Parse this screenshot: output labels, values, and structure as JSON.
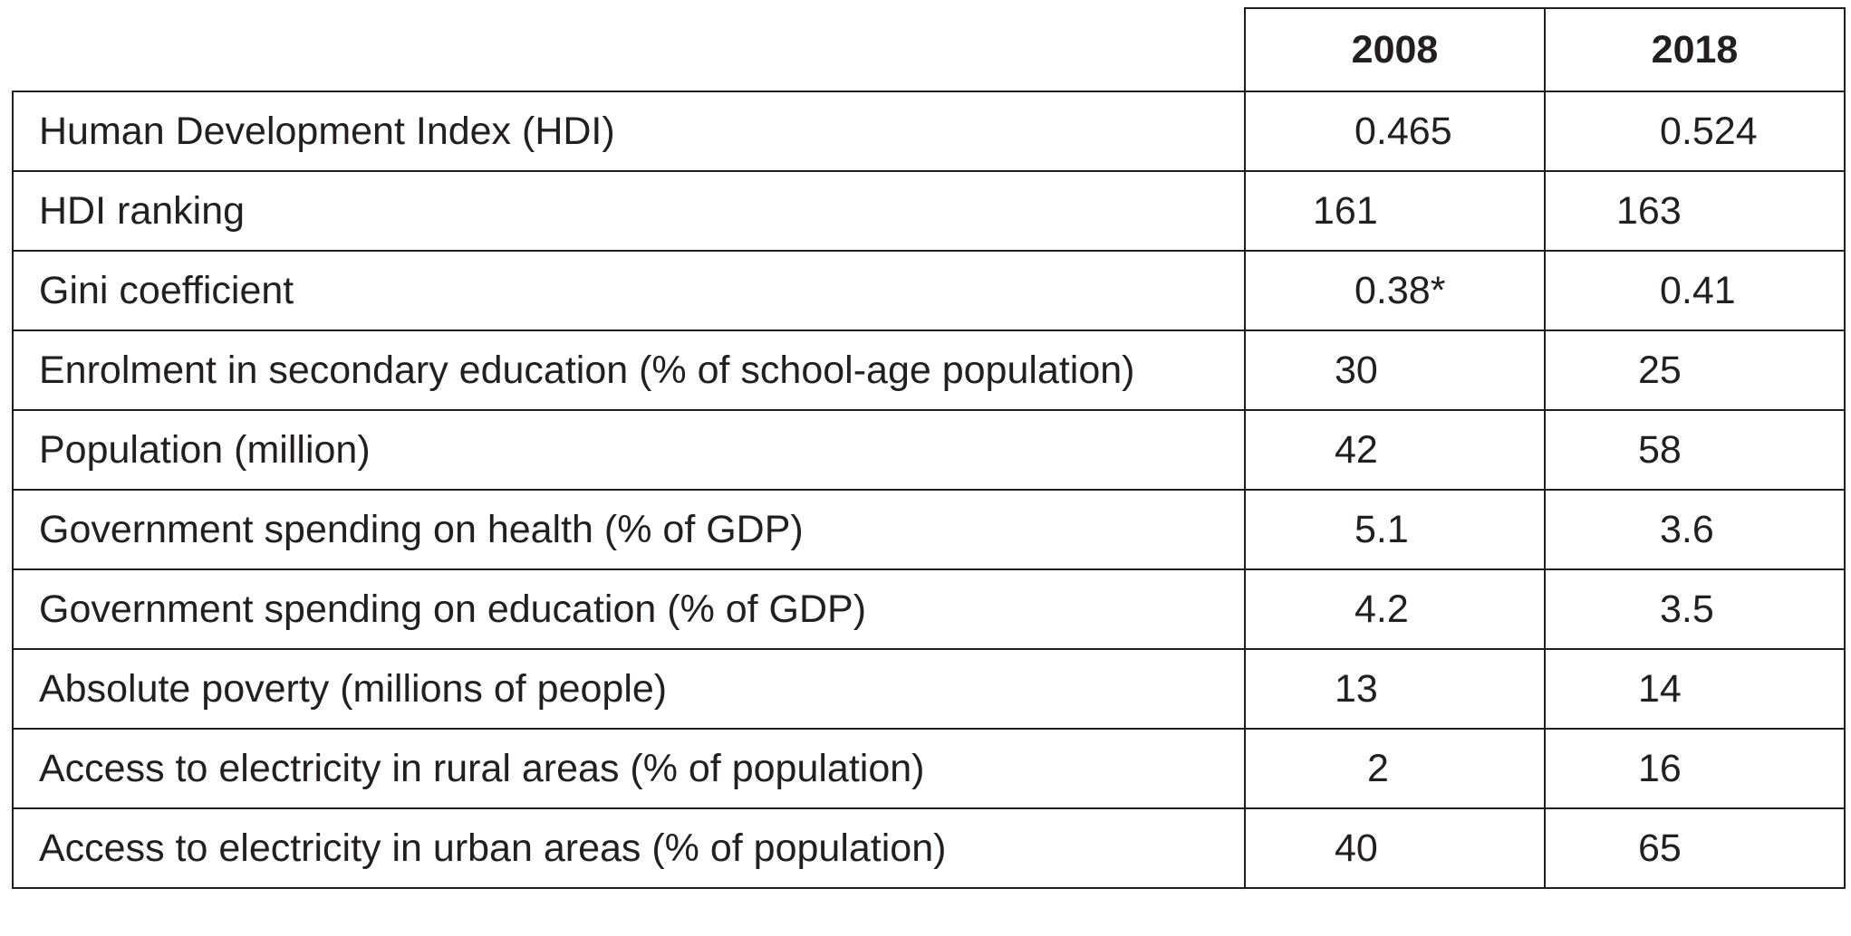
{
  "table": {
    "headers": [
      "",
      "2008",
      "2018"
    ],
    "rows": [
      {
        "label": "Human Development Index (HDI)",
        "v2008": "0.465",
        "v2018": "0.524"
      },
      {
        "label": "HDI ranking",
        "v2008": "161",
        "v2018": "163"
      },
      {
        "label": "Gini coefficient",
        "v2008": "0.38*",
        "v2018": "0.41"
      },
      {
        "label": "Enrolment in secondary education (% of school-age population)",
        "v2008": "30",
        "v2018": "25"
      },
      {
        "label": "Population (million)",
        "v2008": "42",
        "v2018": "58"
      },
      {
        "label": "Government spending on health (% of GDP)",
        "v2008": "5.1",
        "v2018": "3.6"
      },
      {
        "label": "Government spending on education (% of GDP)",
        "v2008": "4.2",
        "v2018": "3.5"
      },
      {
        "label": "Absolute poverty (millions of people)",
        "v2008": "13",
        "v2018": "14"
      },
      {
        "label": "Access to electricity in rural areas (% of population)",
        "v2008": "2",
        "v2018": "16"
      },
      {
        "label": "Access to electricity in urban areas (% of population)",
        "v2008": "40",
        "v2018": "65"
      }
    ]
  }
}
